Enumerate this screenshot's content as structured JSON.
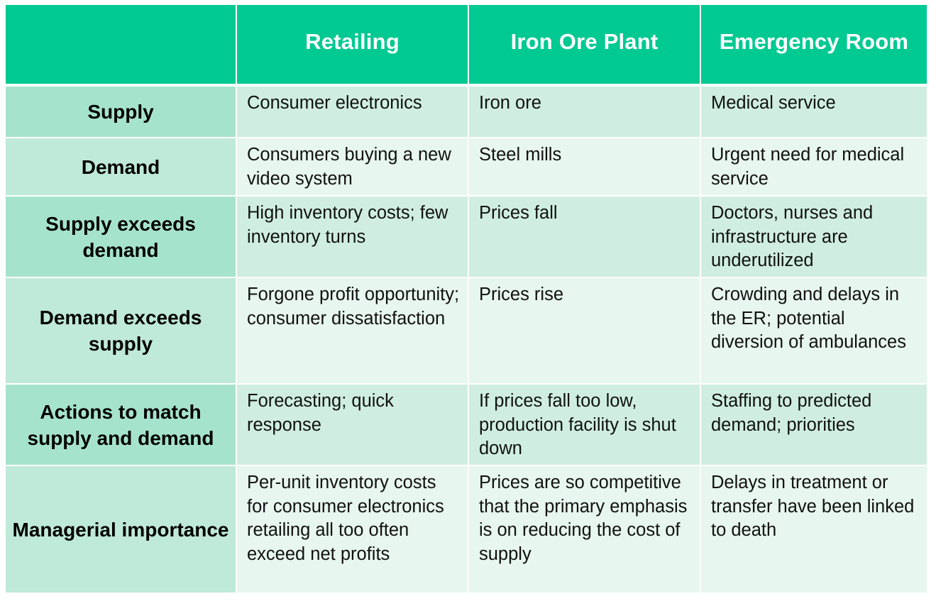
{
  "table": {
    "headers": [
      "",
      "Retailing",
      "Iron Ore Plant",
      "Emergency Room"
    ],
    "rows": [
      {
        "label": "Supply",
        "cells": [
          "Consumer electronics",
          "Iron ore",
          "Medical service"
        ]
      },
      {
        "label": "Demand",
        "cells": [
          "Consumers buying a new video system",
          "Steel mills",
          "Urgent need for medical service"
        ]
      },
      {
        "label": "Supply exceeds demand",
        "cells": [
          "High inventory costs; few inventory turns",
          "Prices fall",
          "Doctors, nurses and infrastructure are underutilized"
        ]
      },
      {
        "label": "Demand exceeds supply",
        "cells": [
          "Forgone profit opportunity; consumer dissatisfaction",
          "Prices rise",
          "Crowding and delays in the ER; potential diversion of ambulances"
        ]
      },
      {
        "label": "Actions to match supply and demand",
        "cells": [
          "Forecasting; quick response",
          "If prices fall too low, production facility is shut down",
          "Staffing to predicted demand; priorities"
        ]
      },
      {
        "label": "Managerial importance",
        "cells": [
          "Per-unit inventory costs for consumer electronics retailing all too often exceed net profits",
          "Prices are so competitive that the primary emphasis is on reducing the cost of supply",
          "Delays in treatment or transfer have been linked to death"
        ]
      }
    ]
  },
  "colors": {
    "header_bg": "#00c992",
    "header_text": "#ffffff",
    "row_label_dark": "#a6e3cd",
    "row_cell_dark": "#cfeee1",
    "row_label_light": "#bfe9d8",
    "row_cell_light": "#e7f6ef"
  }
}
